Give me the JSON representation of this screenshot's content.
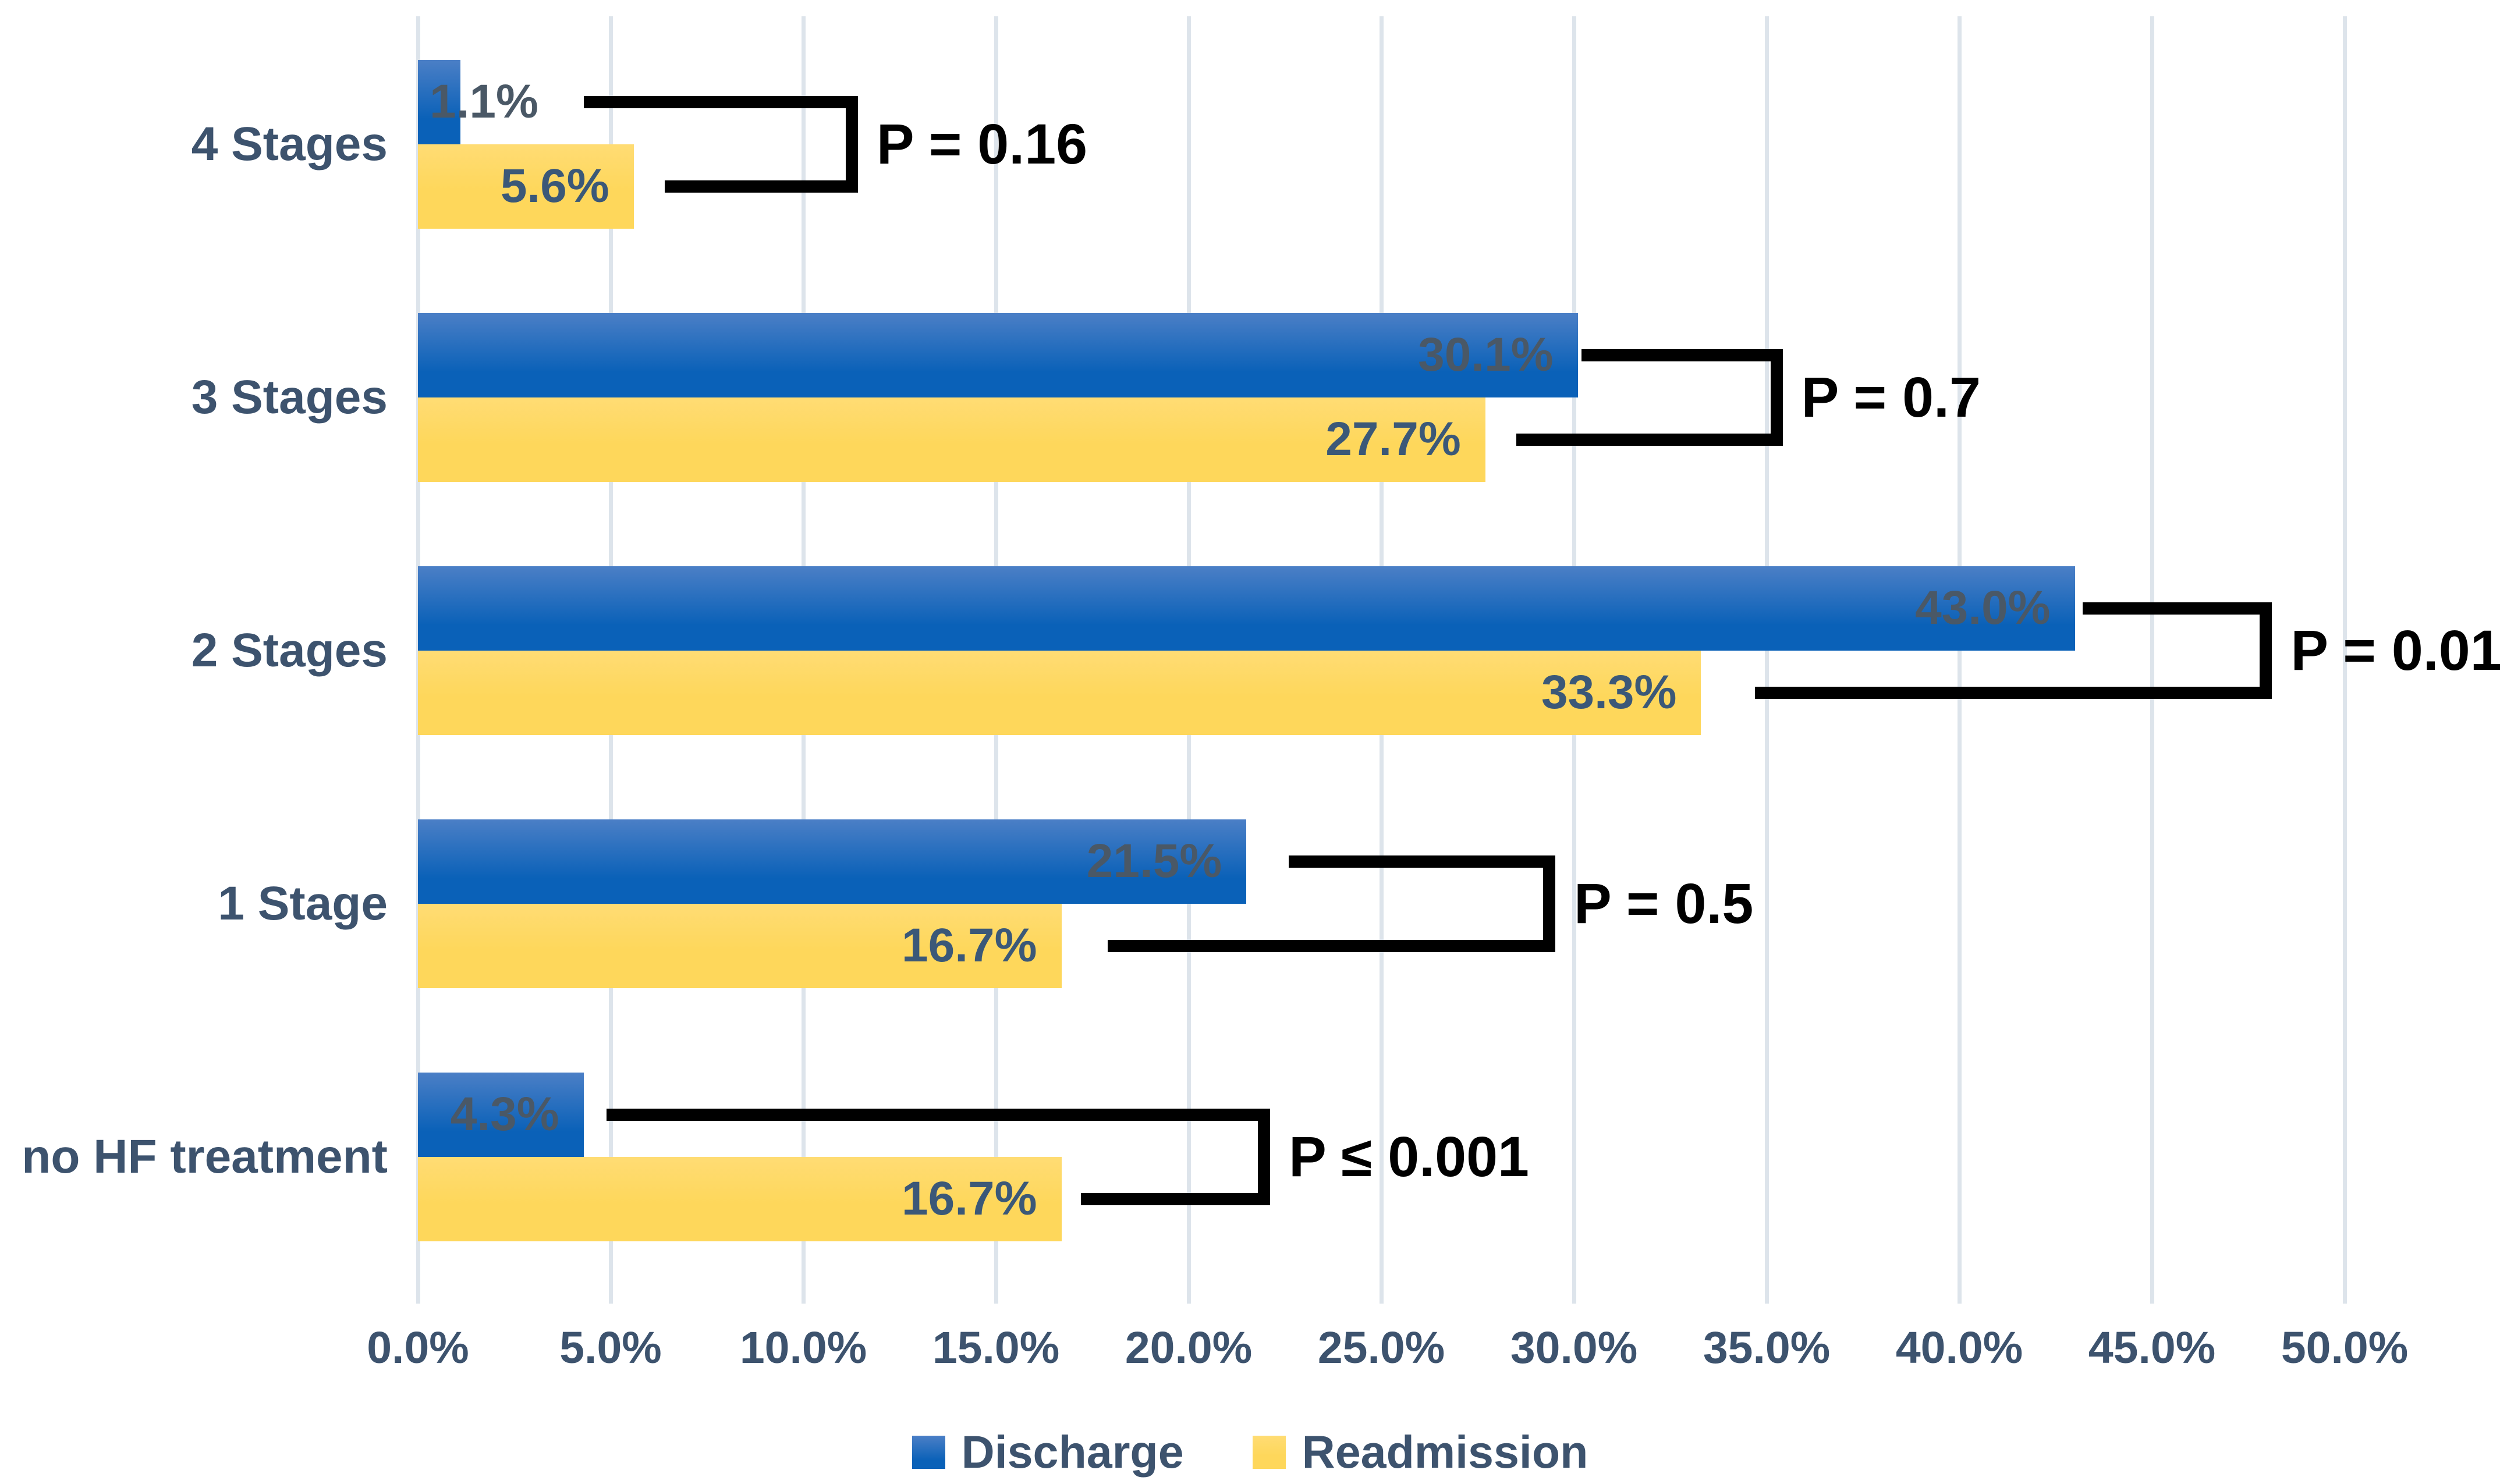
{
  "chart_data": {
    "type": "bar",
    "orientation": "horizontal",
    "title": "",
    "xlabel": "",
    "ylabel": "",
    "xlim": [
      0,
      50
    ],
    "grid": true,
    "categories": [
      "4 Stages",
      "3 Stages",
      "2 Stages",
      "1 Stage",
      "no HF treatment"
    ],
    "series": [
      {
        "name": "Discharge",
        "values": [
          1.1,
          30.1,
          43.0,
          21.5,
          4.3
        ],
        "labels": [
          "1.1%",
          "30.1%",
          "43.0%",
          "21.5%",
          "4.3%"
        ]
      },
      {
        "name": "Readmission",
        "values": [
          5.6,
          27.7,
          33.3,
          16.7,
          16.7
        ],
        "labels": [
          "5.6%",
          "27.7%",
          "33.3%",
          "16.7%",
          "16.7%"
        ]
      }
    ],
    "annotations": [
      {
        "category": "4 Stages",
        "label": "P = 0.16",
        "top_arm_from": 4.3,
        "bottom_arm_from": 6.4,
        "bracket_x": 11.1
      },
      {
        "category": "3 Stages",
        "label": "P = 0.7",
        "top_arm_from": 30.2,
        "bottom_arm_from": 28.5,
        "bracket_x": 35.1
      },
      {
        "category": "2 Stages",
        "label": "P = 0.01",
        "top_arm_from": 43.2,
        "bottom_arm_from": 34.7,
        "bracket_x": 47.8
      },
      {
        "category": "1 Stage",
        "label": "P = 0.5",
        "top_arm_from": 22.6,
        "bottom_arm_from": 17.9,
        "bracket_x": 29.2
      },
      {
        "category": "no HF treatment",
        "label": "P ≤ 0.001",
        "top_arm_from": 4.9,
        "bottom_arm_from": 17.2,
        "bracket_x": 21.8
      }
    ],
    "x_ticks": [
      "0.0%",
      "5.0%",
      "10.0%",
      "15.0%",
      "20.0%",
      "25.0%",
      "30.0%",
      "35.0%",
      "40.0%",
      "45.0%",
      "50.0%"
    ],
    "legend": {
      "position": "bottom",
      "entries": [
        "Discharge",
        "Readmission"
      ]
    },
    "colors": {
      "discharge_top": "#4b7fc6",
      "discharge_bottom": "#0a61b8",
      "readmission_top": "#ffdc74",
      "readmission_bottom": "#fed75b",
      "axis_text": "#3d536e",
      "label_on_discharge": "#4a5866",
      "label_on_readmission": "#3b5878",
      "annotation_text": "#000000",
      "annotation_line": "#000000",
      "gridline": "#dde4eb",
      "background": "#ffffff"
    }
  }
}
